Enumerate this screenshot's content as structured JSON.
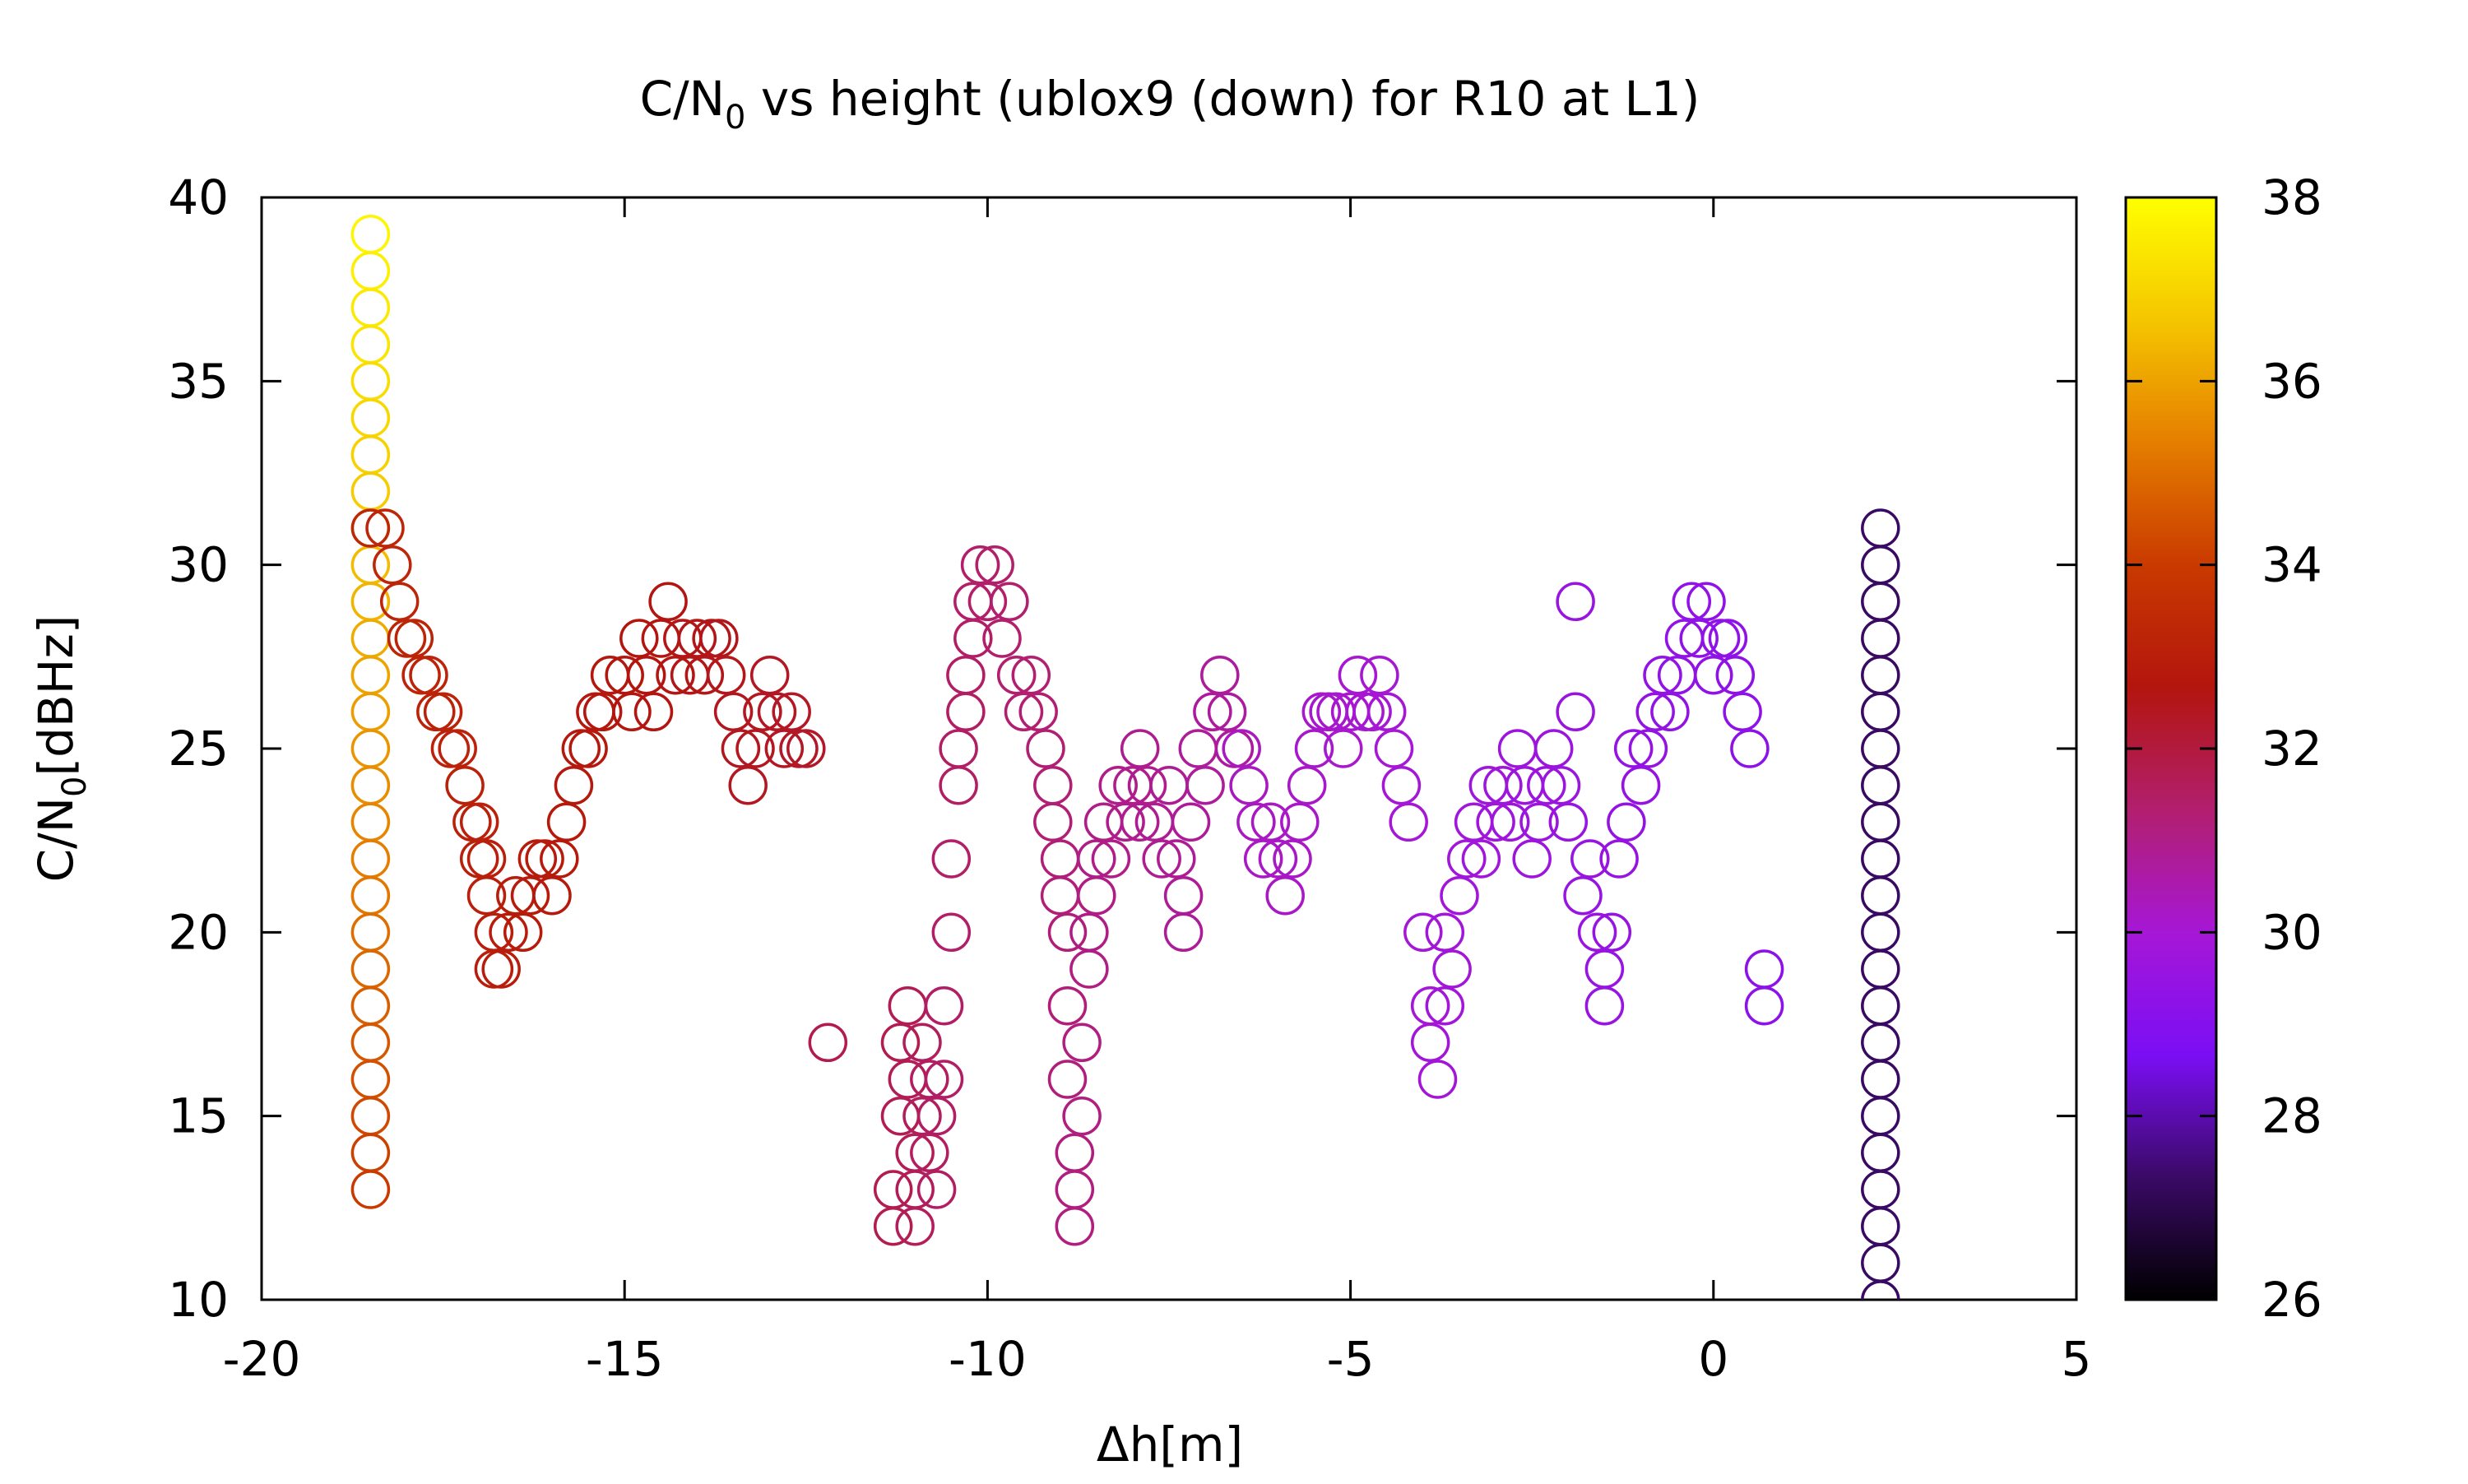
{
  "chart_data": {
    "type": "scatter",
    "title": {
      "main": "C/N",
      "sub": "0",
      "rest": " vs height (ublox9 (down) for R10 at L1)"
    },
    "xlabel": "Δh[m]",
    "ylabel": {
      "main": "C/N",
      "sub": "0",
      "rest": "[dBHz]"
    },
    "xlim": [
      -20,
      5
    ],
    "ylim": [
      10,
      40
    ],
    "xticks": [
      -20,
      -15,
      -10,
      -5,
      0,
      5
    ],
    "yticks": [
      10,
      15,
      20,
      25,
      30,
      35,
      40
    ],
    "grid": false,
    "marker": "open-circle",
    "colorbar": {
      "range": [
        26,
        38
      ],
      "ticks": [
        26,
        28,
        30,
        32,
        34,
        36,
        38
      ],
      "palette": [
        "#000000",
        "#3a0a66",
        "#7b0ef5",
        "#a617d6",
        "#b21f6e",
        "#b3150e",
        "#c93a00",
        "#e57e00",
        "#f5c600",
        "#ffff00"
      ]
    },
    "series": [
      {
        "cstart": 37.8,
        "cend": 34.0,
        "points": [
          [
            -18.5,
            39
          ],
          [
            -18.5,
            38
          ],
          [
            -18.5,
            37
          ],
          [
            -18.5,
            36
          ],
          [
            -18.5,
            35
          ],
          [
            -18.5,
            34
          ],
          [
            -18.5,
            33
          ],
          [
            -18.5,
            32
          ],
          [
            -18.5,
            31
          ],
          [
            -18.5,
            30
          ],
          [
            -18.5,
            29
          ],
          [
            -18.5,
            28
          ],
          [
            -18.5,
            27
          ],
          [
            -18.5,
            26
          ],
          [
            -18.5,
            25
          ],
          [
            -18.5,
            24
          ],
          [
            -18.5,
            23
          ],
          [
            -18.5,
            22
          ],
          [
            -18.5,
            21
          ],
          [
            -18.5,
            20
          ],
          [
            -18.5,
            19
          ],
          [
            -18.5,
            18
          ],
          [
            -18.5,
            17
          ],
          [
            -18.5,
            16
          ],
          [
            -18.5,
            15
          ],
          [
            -18.5,
            14
          ],
          [
            -18.5,
            13
          ]
        ]
      },
      {
        "cstart": 33.3,
        "cend": 32.3,
        "points": [
          [
            -18.5,
            31
          ],
          [
            -18.3,
            31
          ],
          [
            -18.2,
            30
          ],
          [
            -18.1,
            29
          ],
          [
            -18.0,
            28
          ],
          [
            -17.9,
            28
          ],
          [
            -17.8,
            27
          ],
          [
            -17.7,
            27
          ],
          [
            -17.6,
            26
          ],
          [
            -17.5,
            26
          ],
          [
            -17.4,
            25
          ],
          [
            -17.3,
            25
          ],
          [
            -17.2,
            24
          ],
          [
            -17.1,
            23
          ],
          [
            -17.0,
            23
          ],
          [
            -17.0,
            22
          ],
          [
            -16.9,
            22
          ],
          [
            -16.9,
            21
          ],
          [
            -16.8,
            20
          ],
          [
            -16.8,
            19
          ],
          [
            -16.7,
            19
          ],
          [
            -16.6,
            20
          ],
          [
            -16.5,
            21
          ],
          [
            -16.4,
            20
          ],
          [
            -16.3,
            21
          ],
          [
            -16.2,
            22
          ],
          [
            -16.1,
            22
          ],
          [
            -16.0,
            21
          ],
          [
            -15.9,
            22
          ],
          [
            -15.8,
            23
          ],
          [
            -15.7,
            24
          ],
          [
            -15.6,
            25
          ],
          [
            -15.5,
            25
          ],
          [
            -15.4,
            26
          ],
          [
            -15.3,
            26
          ],
          [
            -15.2,
            27
          ],
          [
            -15.0,
            27
          ],
          [
            -14.9,
            26
          ],
          [
            -14.8,
            28
          ],
          [
            -14.7,
            27
          ],
          [
            -14.6,
            26
          ],
          [
            -14.5,
            28
          ],
          [
            -14.4,
            29
          ],
          [
            -14.3,
            27
          ],
          [
            -14.2,
            28
          ],
          [
            -14.1,
            27
          ],
          [
            -14.0,
            28
          ],
          [
            -13.9,
            27
          ],
          [
            -13.8,
            28
          ],
          [
            -13.7,
            28
          ],
          [
            -13.6,
            27
          ],
          [
            -13.5,
            26
          ],
          [
            -13.4,
            25
          ],
          [
            -13.3,
            24
          ],
          [
            -13.2,
            25
          ],
          [
            -13.1,
            26
          ],
          [
            -13.0,
            27
          ],
          [
            -12.9,
            26
          ],
          [
            -12.8,
            25
          ],
          [
            -12.7,
            26
          ],
          [
            -12.6,
            25
          ],
          [
            -12.5,
            25
          ]
        ]
      },
      {
        "cstart": 31.8,
        "cend": 31.4,
        "points": [
          [
            -12.2,
            17
          ],
          [
            -11.3,
            13
          ],
          [
            -11.3,
            12
          ],
          [
            -11.2,
            17
          ],
          [
            -11.2,
            15
          ],
          [
            -11.1,
            18
          ],
          [
            -11.1,
            16
          ],
          [
            -11.0,
            14
          ],
          [
            -11.0,
            13
          ],
          [
            -11.0,
            12
          ],
          [
            -10.9,
            17
          ],
          [
            -10.9,
            15
          ],
          [
            -10.8,
            16
          ],
          [
            -10.8,
            14
          ],
          [
            -10.7,
            13
          ],
          [
            -10.7,
            15
          ],
          [
            -10.6,
            16
          ],
          [
            -10.6,
            18
          ],
          [
            -10.5,
            20
          ],
          [
            -10.5,
            22
          ]
        ]
      },
      {
        "cstart": 31.5,
        "cend": 30.7,
        "points": [
          [
            -10.4,
            24
          ],
          [
            -10.4,
            25
          ],
          [
            -10.3,
            26
          ],
          [
            -10.3,
            27
          ],
          [
            -10.2,
            28
          ],
          [
            -10.2,
            29
          ],
          [
            -10.1,
            30
          ],
          [
            -10.0,
            29
          ],
          [
            -9.9,
            30
          ],
          [
            -9.8,
            28
          ],
          [
            -9.7,
            29
          ],
          [
            -9.6,
            27
          ],
          [
            -9.5,
            26
          ],
          [
            -9.4,
            27
          ],
          [
            -9.3,
            26
          ],
          [
            -9.2,
            25
          ],
          [
            -9.1,
            24
          ],
          [
            -9.1,
            23
          ],
          [
            -9.0,
            22
          ],
          [
            -9.0,
            21
          ],
          [
            -8.9,
            20
          ],
          [
            -8.9,
            18
          ],
          [
            -8.9,
            16
          ],
          [
            -8.8,
            14
          ],
          [
            -8.8,
            13
          ],
          [
            -8.8,
            12
          ],
          [
            -8.7,
            15
          ],
          [
            -8.7,
            17
          ],
          [
            -8.6,
            19
          ],
          [
            -8.6,
            20
          ],
          [
            -8.5,
            21
          ],
          [
            -8.5,
            22
          ],
          [
            -8.4,
            23
          ],
          [
            -8.3,
            22
          ],
          [
            -8.2,
            24
          ],
          [
            -8.1,
            23
          ],
          [
            -8.0,
            24
          ],
          [
            -7.9,
            25
          ],
          [
            -7.9,
            23
          ],
          [
            -7.8,
            24
          ],
          [
            -7.7,
            23
          ],
          [
            -7.6,
            22
          ],
          [
            -7.5,
            24
          ],
          [
            -7.4,
            22
          ],
          [
            -7.3,
            21
          ],
          [
            -7.3,
            20
          ],
          [
            -7.2,
            23
          ],
          [
            -7.1,
            25
          ],
          [
            -7.0,
            24
          ],
          [
            -6.9,
            26
          ],
          [
            -6.8,
            27
          ],
          [
            -6.7,
            26
          ],
          [
            -6.6,
            25
          ]
        ]
      },
      {
        "cstart": 30.3,
        "cend": 29.2,
        "points": [
          [
            -6.5,
            25
          ],
          [
            -6.4,
            24
          ],
          [
            -6.3,
            23
          ],
          [
            -6.2,
            22
          ],
          [
            -6.1,
            23
          ],
          [
            -6.0,
            22
          ],
          [
            -5.9,
            21
          ],
          [
            -5.8,
            22
          ],
          [
            -5.7,
            23
          ],
          [
            -5.6,
            24
          ],
          [
            -5.5,
            25
          ],
          [
            -5.4,
            26
          ],
          [
            -5.3,
            26
          ],
          [
            -5.2,
            26
          ],
          [
            -5.1,
            25
          ],
          [
            -5.0,
            26
          ],
          [
            -4.9,
            27
          ],
          [
            -4.8,
            26
          ],
          [
            -4.7,
            26
          ],
          [
            -4.6,
            27
          ],
          [
            -4.5,
            26
          ],
          [
            -4.4,
            25
          ],
          [
            -4.3,
            24
          ],
          [
            -4.2,
            23
          ],
          [
            -4.0,
            20
          ],
          [
            -3.9,
            18
          ],
          [
            -3.9,
            17
          ],
          [
            -3.8,
            16
          ],
          [
            -3.7,
            18
          ],
          [
            -3.7,
            20
          ],
          [
            -3.6,
            19
          ],
          [
            -3.5,
            21
          ],
          [
            -3.4,
            22
          ],
          [
            -3.3,
            23
          ],
          [
            -3.2,
            22
          ],
          [
            -3.1,
            24
          ],
          [
            -3.0,
            23
          ],
          [
            -2.9,
            24
          ],
          [
            -2.8,
            23
          ],
          [
            -2.7,
            25
          ],
          [
            -2.6,
            24
          ],
          [
            -2.5,
            22
          ],
          [
            -2.4,
            23
          ],
          [
            -2.3,
            24
          ],
          [
            -2.2,
            25
          ],
          [
            -2.1,
            24
          ],
          [
            -2.0,
            23
          ],
          [
            -1.9,
            29
          ],
          [
            -1.9,
            26
          ],
          [
            -1.8,
            21
          ],
          [
            -1.7,
            22
          ],
          [
            -1.6,
            20
          ],
          [
            -1.5,
            18
          ],
          [
            -1.5,
            19
          ],
          [
            -1.4,
            20
          ],
          [
            -1.3,
            22
          ],
          [
            -1.2,
            23
          ],
          [
            -1.1,
            25
          ],
          [
            -1.0,
            24
          ],
          [
            -0.9,
            25
          ],
          [
            -0.8,
            26
          ],
          [
            -0.7,
            27
          ],
          [
            -0.6,
            26
          ],
          [
            -0.5,
            27
          ],
          [
            -0.4,
            28
          ],
          [
            -0.3,
            29
          ],
          [
            -0.2,
            28
          ],
          [
            -0.1,
            29
          ],
          [
            0.0,
            27
          ],
          [
            0.1,
            28
          ],
          [
            0.2,
            28
          ],
          [
            0.3,
            27
          ],
          [
            0.4,
            26
          ],
          [
            0.5,
            25
          ],
          [
            0.7,
            19
          ],
          [
            0.7,
            18
          ]
        ]
      },
      {
        "cstart": 27.3,
        "cend": 27.3,
        "points": [
          [
            2.3,
            31
          ],
          [
            2.3,
            30
          ],
          [
            2.3,
            29
          ],
          [
            2.3,
            28
          ],
          [
            2.3,
            27
          ],
          [
            2.3,
            26
          ],
          [
            2.3,
            25
          ],
          [
            2.3,
            24
          ],
          [
            2.3,
            23
          ],
          [
            2.3,
            22
          ],
          [
            2.3,
            21
          ],
          [
            2.3,
            20
          ],
          [
            2.3,
            19
          ],
          [
            2.3,
            18
          ],
          [
            2.3,
            17
          ],
          [
            2.3,
            16
          ],
          [
            2.3,
            15
          ],
          [
            2.3,
            14
          ],
          [
            2.3,
            13
          ],
          [
            2.3,
            12
          ],
          [
            2.3,
            11
          ],
          [
            2.3,
            10
          ]
        ]
      }
    ]
  }
}
